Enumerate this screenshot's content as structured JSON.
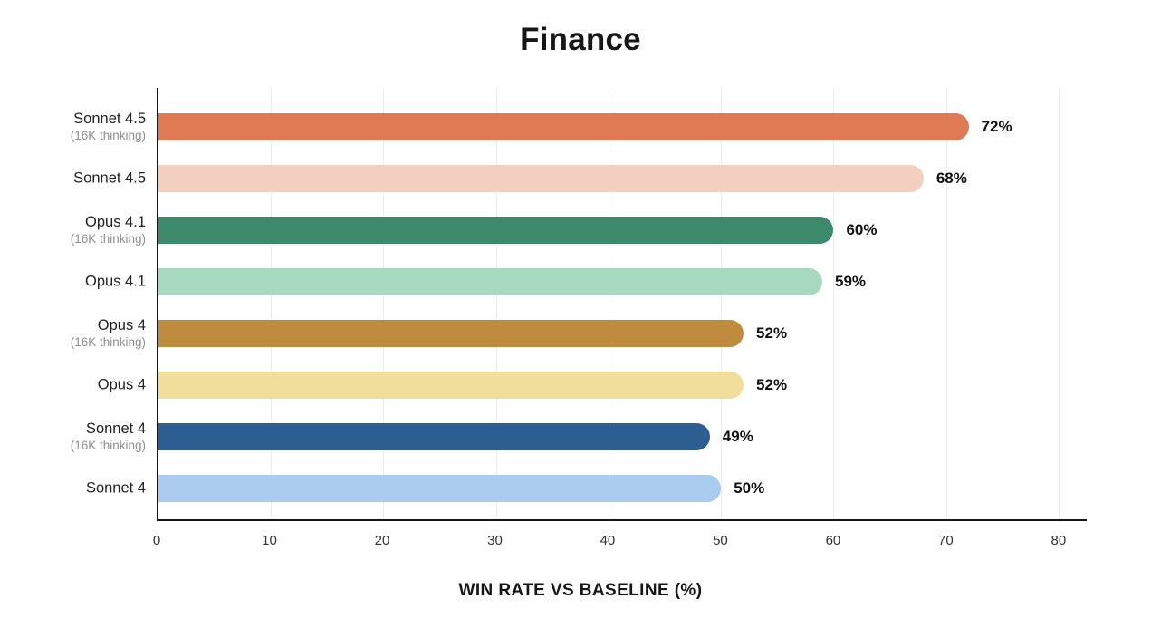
{
  "chart_data": {
    "type": "bar",
    "orientation": "horizontal",
    "title": "Finance",
    "xlabel": "WIN RATE VS BASELINE (%)",
    "ylabel": "",
    "xlim": [
      0,
      82.5
    ],
    "x_ticks": [
      0,
      10,
      20,
      30,
      40,
      50,
      60,
      70,
      80
    ],
    "grid": true,
    "legend": "none",
    "categories": [
      "Sonnet 4.5 (16K thinking)",
      "Sonnet 4.5",
      "Opus 4.1 (16K thinking)",
      "Opus 4.1",
      "Opus 4 (16K thinking)",
      "Opus 4",
      "Sonnet 4 (16K thinking)",
      "Sonnet 4"
    ],
    "bars": [
      {
        "label": "Sonnet 4.5",
        "sublabel": "(16K thinking)",
        "value": 72,
        "value_label": "72%",
        "color": "#E07A55"
      },
      {
        "label": "Sonnet 4.5",
        "sublabel": "",
        "value": 68,
        "value_label": "68%",
        "color": "#F4CFC0"
      },
      {
        "label": "Opus 4.1",
        "sublabel": "(16K thinking)",
        "value": 60,
        "value_label": "60%",
        "color": "#3C8A6B"
      },
      {
        "label": "Opus 4.1",
        "sublabel": "",
        "value": 59,
        "value_label": "59%",
        "color": "#A6D9C0"
      },
      {
        "label": "Opus 4",
        "sublabel": "(16K thinking)",
        "value": 52,
        "value_label": "52%",
        "color": "#BF8C3E"
      },
      {
        "label": "Opus 4",
        "sublabel": "",
        "value": 52,
        "value_label": "52%",
        "color": "#F2DE9C"
      },
      {
        "label": "Sonnet 4",
        "sublabel": "(16K thinking)",
        "value": 49,
        "value_label": "49%",
        "color": "#2D5E91"
      },
      {
        "label": "Sonnet 4",
        "sublabel": "",
        "value": 50,
        "value_label": "50%",
        "color": "#AACCEE"
      }
    ]
  },
  "colors": {
    "background": "#ffffff",
    "axis": "#161616",
    "gridline": "#ececec",
    "ink": "#161616",
    "sublabel": "#8e8e8e"
  }
}
